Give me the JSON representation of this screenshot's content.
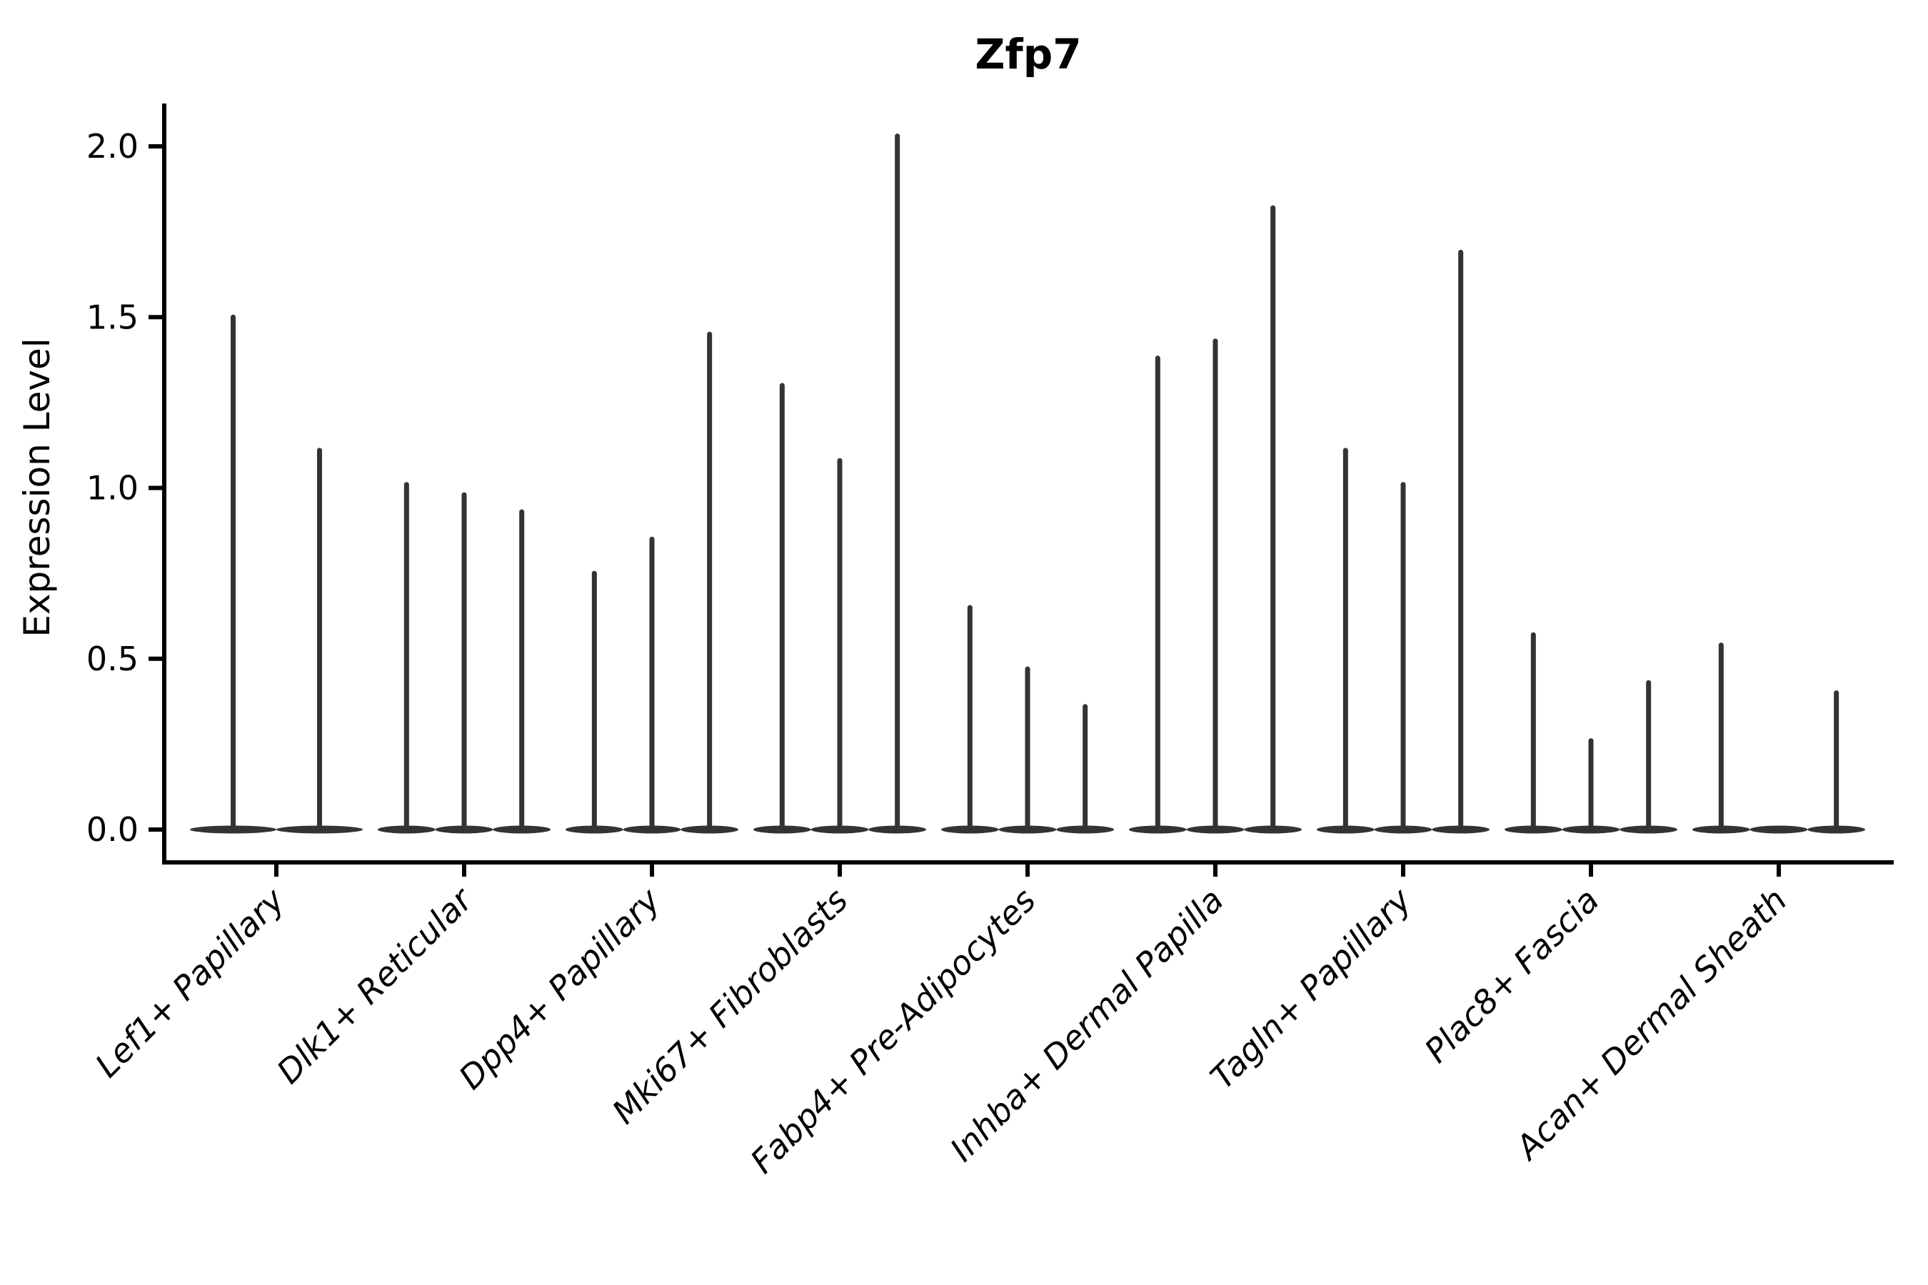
{
  "figure": {
    "title": "Zfp7",
    "y_axis_label": "Expression Level"
  },
  "chart_data": {
    "type": "violin",
    "title": "Zfp7",
    "xlabel": "",
    "ylabel": "Expression Level",
    "ylim": [
      -0.05,
      2.15
    ],
    "grid": false,
    "legend": "none",
    "y_axis": {
      "ticks": [
        0.0,
        0.5,
        1.0,
        1.5,
        2.0
      ],
      "tick_labels": [
        "0.0",
        "0.5",
        "1.0",
        "1.5",
        "2.0"
      ]
    },
    "description": "Violin plot of Zfp7 expression; each cell-type group holds thin sub-violins whose mass sits at 0 with a narrow spike rising to the group maximum.",
    "baseline_value": 0.0,
    "categories": [
      "Lef1+ Papillary",
      "Dlk1+ Reticular",
      "Dpp4+ Papillary",
      "Mki67+ Fibroblasts",
      "Fabp4+ Pre-Adipocytes",
      "Inhba+ Dermal Papilla",
      "Tagln+ Papillary",
      "Plac8+ Fascia",
      "Acan+ Dermal Sheath"
    ],
    "groups": [
      {
        "label": "Lef1+ Papillary",
        "violin_maxima": [
          1.5,
          1.11
        ]
      },
      {
        "label": "Dlk1+ Reticular",
        "violin_maxima": [
          1.01,
          0.98,
          0.93
        ]
      },
      {
        "label": "Dpp4+ Papillary",
        "violin_maxima": [
          0.75,
          0.85,
          1.45
        ]
      },
      {
        "label": "Mki67+ Fibroblasts",
        "violin_maxima": [
          1.3,
          1.08,
          2.03
        ]
      },
      {
        "label": "Fabp4+ Pre-Adipocytes",
        "violin_maxima": [
          0.65,
          0.47,
          0.36
        ]
      },
      {
        "label": "Inhba+ Dermal Papilla",
        "violin_maxima": [
          1.38,
          1.43,
          1.82
        ]
      },
      {
        "label": "Tagln+ Papillary",
        "violin_maxima": [
          1.11,
          1.01,
          1.69
        ]
      },
      {
        "label": "Plac8+ Fascia",
        "violin_maxima": [
          0.57,
          0.26,
          0.43
        ]
      },
      {
        "label": "Acan+ Dermal Sheath",
        "violin_maxima": [
          0.54,
          0.0,
          0.4
        ]
      }
    ],
    "colors": {
      "violin": "#333333",
      "axis": "#000000",
      "text": "#000000",
      "background": "#ffffff"
    }
  }
}
